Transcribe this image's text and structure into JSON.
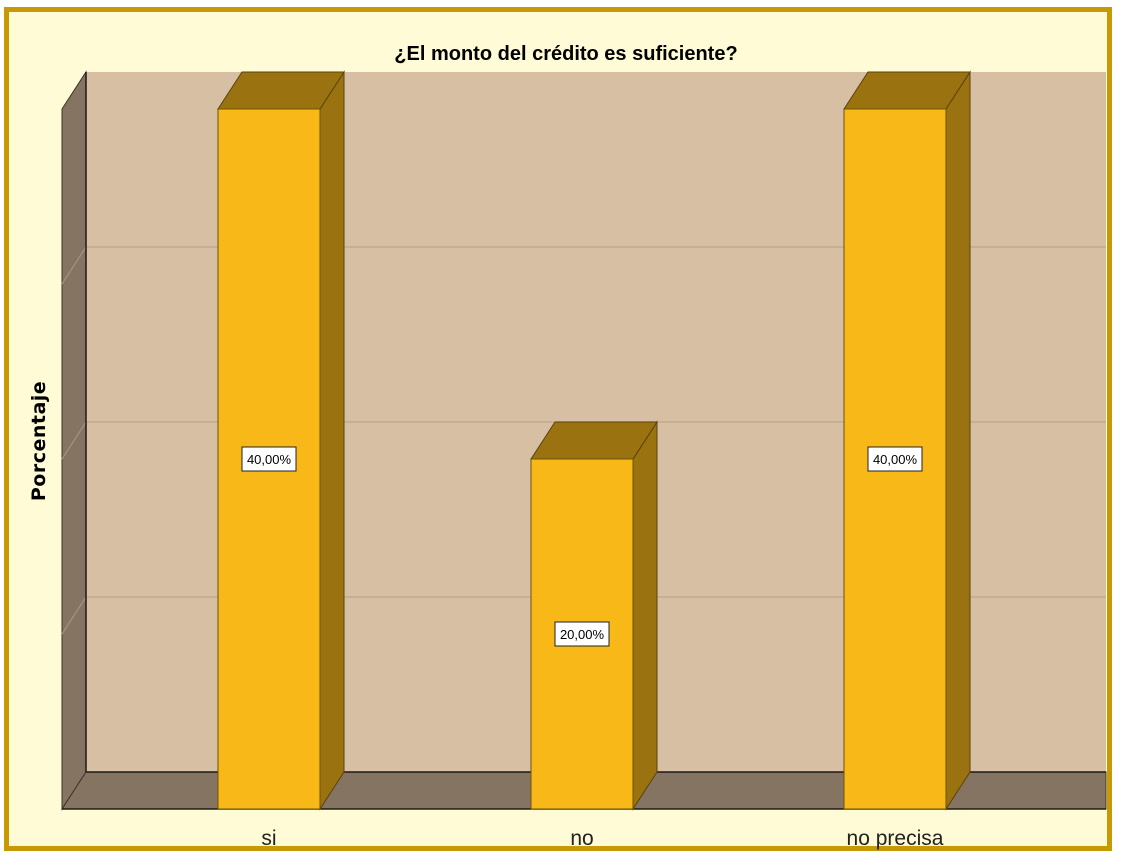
{
  "chart_data": {
    "type": "bar",
    "title": "¿El monto del crédito es suficiente?",
    "ylabel": "Porcentaje",
    "xlabel": "",
    "categories": [
      "si",
      "no",
      "no precisa"
    ],
    "values": [
      40,
      20,
      40
    ],
    "data_labels": [
      "40,00%",
      "20,00%",
      "40,00%"
    ],
    "ylim": [
      0,
      40
    ],
    "grid": true,
    "legend": "none",
    "colors": {
      "bar_front": "#f8b918",
      "bar_side": "#9a7210",
      "plot_background": "#d6bfa3",
      "floor_wall": "#857461",
      "frame_border": "#c79a05",
      "frame_background": "#fffbd6"
    }
  }
}
